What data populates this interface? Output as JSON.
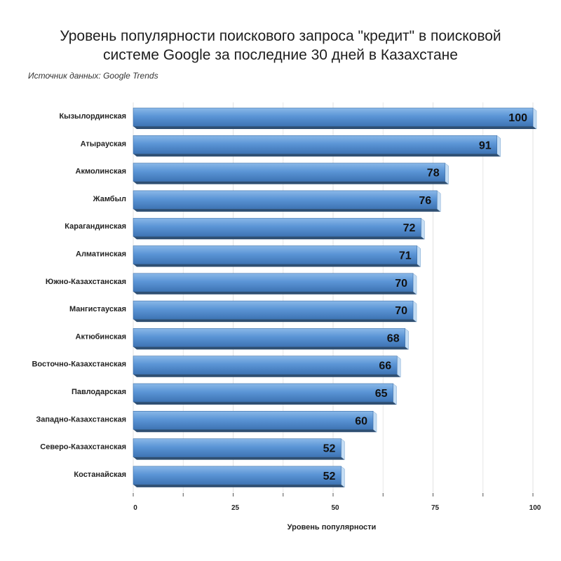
{
  "title_lines": [
    "Уровень популярности поискового запроса \"кредит\" в поисковой",
    "системе Google за последние 30 дней в Казахстане"
  ],
  "source": "Источник данных: Google Trends",
  "colors": {
    "bar_top": "#8ab8e8",
    "bar_mid": "#5b95d6",
    "bar_bottom": "#3e74b4",
    "bar_end": "#c4ddf4",
    "bar_underside": "#2f4f72",
    "grid": "#e2e2e2"
  },
  "chart_data": {
    "type": "bar",
    "orientation": "horizontal",
    "title": "Уровень популярности поискового запроса \"кредит\" в поисковой системе Google за последние 30 дней в Казахстане",
    "xlabel": "Уровень популярности",
    "ylabel": "",
    "xlim": [
      0,
      100
    ],
    "x_ticks": [
      0,
      25,
      50,
      75,
      100
    ],
    "grid": true,
    "categories": [
      "Кызылординская",
      "Атырауская",
      "Акмолинская",
      "Жамбыл",
      "Карагандинская",
      "Алматинская",
      "Южно-Казахстанская",
      "Мангистауская",
      "Актюбинская",
      "Восточно-Казахстанская",
      "Павлодарская",
      "Западно-Казахстанская",
      "Северо-Казахстанская",
      "Костанайская"
    ],
    "values": [
      100,
      91,
      78,
      76,
      72,
      71,
      70,
      70,
      68,
      66,
      65,
      60,
      52,
      52
    ]
  }
}
